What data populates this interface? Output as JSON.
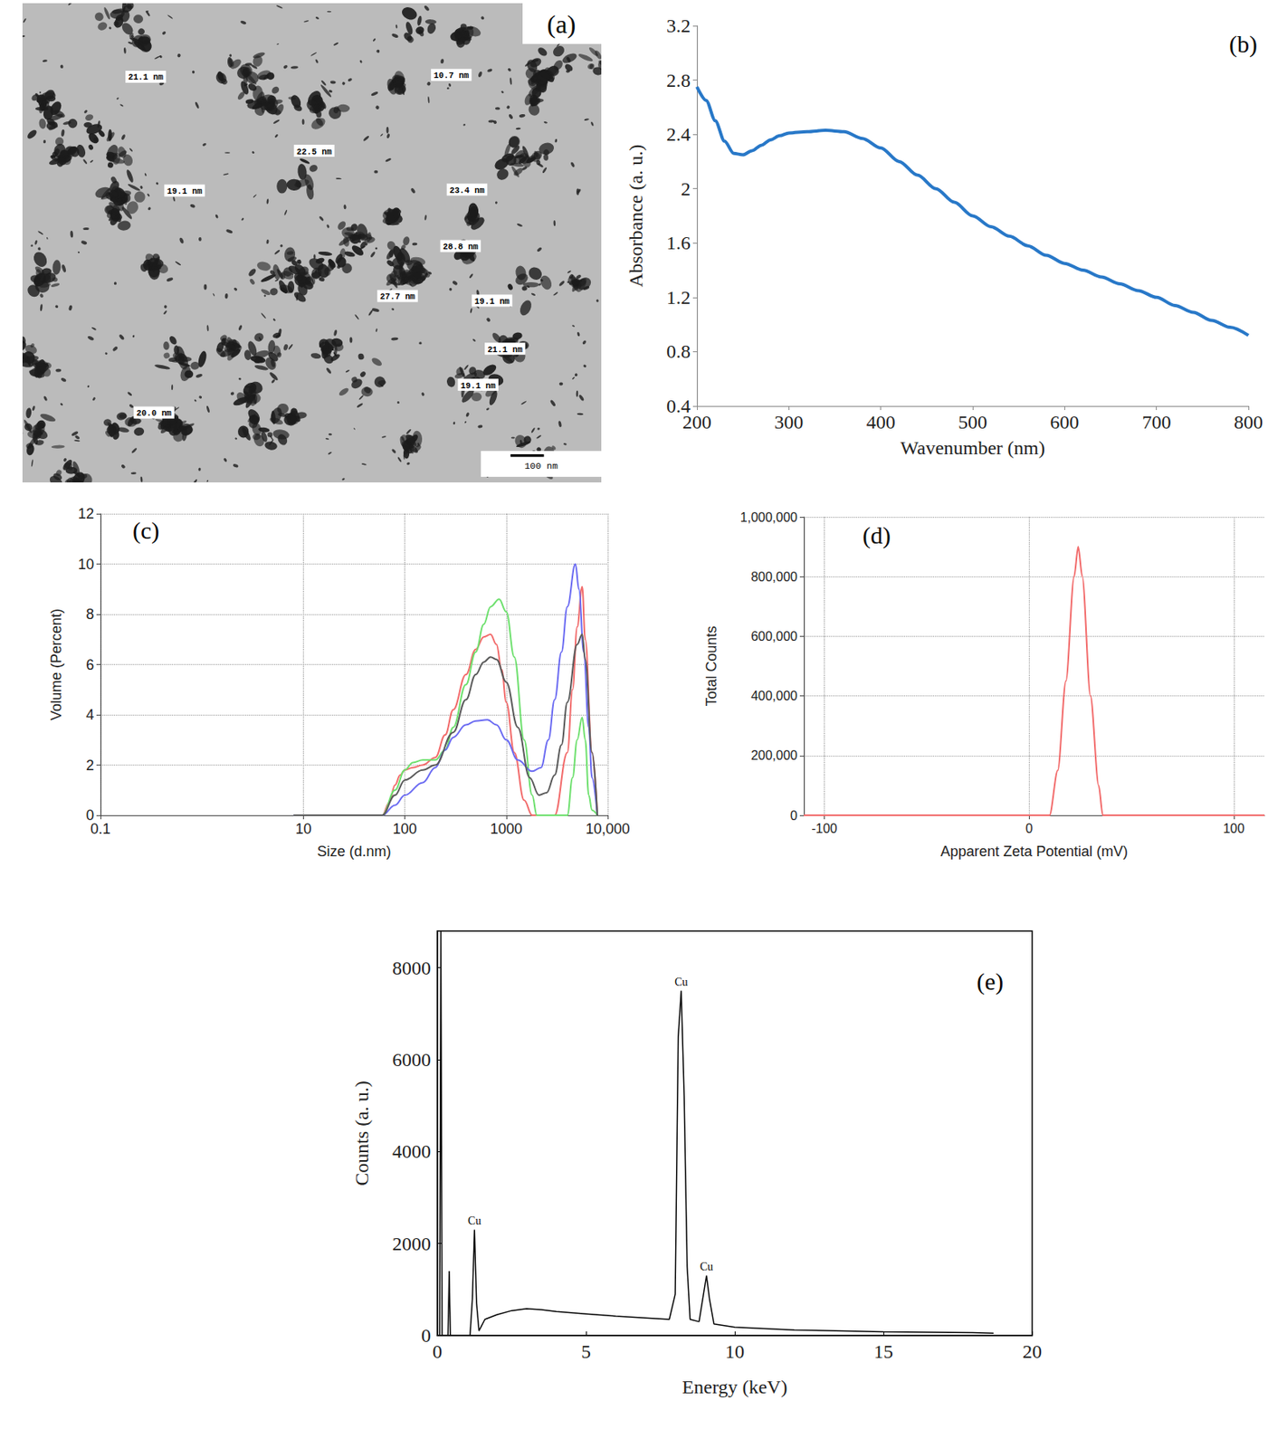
{
  "micrograph": {
    "title": "(a)",
    "labels": [
      "21.1 nm",
      "10.7 nm",
      "22.5 nm",
      "19.1 nm",
      "23.4 nm",
      "28.8 nm",
      "27.7 nm",
      "19.1 nm",
      "21.1 nm",
      "19.1 nm",
      "20.0 nm"
    ],
    "scale_bar": "100 nm"
  },
  "chart_data": [
    {
      "type": "line",
      "title": "(b)",
      "xlabel": "Wavenumber (nm)",
      "ylabel": "Absorbance (a. u.)",
      "x": [
        200,
        210,
        220,
        230,
        240,
        250,
        260,
        270,
        280,
        290,
        300,
        320,
        340,
        360,
        380,
        400,
        420,
        440,
        460,
        480,
        500,
        520,
        540,
        560,
        580,
        600,
        620,
        640,
        660,
        680,
        700,
        720,
        740,
        760,
        780,
        800
      ],
      "values": [
        2.75,
        2.65,
        2.5,
        2.35,
        2.26,
        2.25,
        2.28,
        2.32,
        2.36,
        2.39,
        2.41,
        2.42,
        2.43,
        2.42,
        2.37,
        2.3,
        2.2,
        2.1,
        2.0,
        1.9,
        1.8,
        1.72,
        1.65,
        1.58,
        1.51,
        1.45,
        1.4,
        1.35,
        1.3,
        1.25,
        1.2,
        1.14,
        1.09,
        1.03,
        0.98,
        0.92
      ],
      "color": "#2878c8",
      "marker": "none",
      "xlim": [
        200,
        800
      ],
      "xticks": [
        200,
        300,
        400,
        500,
        600,
        700,
        800
      ],
      "ylim": [
        0.4,
        3.2
      ],
      "yticks": [
        0.4,
        0.8,
        1.2,
        1.6,
        2,
        2.4,
        2.8,
        3.2
      ],
      "grid": false
    },
    {
      "type": "line",
      "title": "(c)",
      "xlabel": "Size (d.nm)",
      "ylabel": "Volume (Percent)",
      "log": "x",
      "series": [
        {
          "color": "#f26b6b",
          "x": [
            8,
            60,
            70,
            80,
            90,
            100,
            120,
            150,
            200,
            250,
            300,
            400,
            500,
            600,
            700,
            800,
            900,
            1000,
            1200,
            1500,
            1800,
            3000,
            4000,
            4500,
            5000,
            5600,
            6000,
            7000,
            7900
          ],
          "values": [
            0,
            0,
            0.5,
            1.2,
            1.6,
            1.8,
            1.9,
            2.0,
            2.3,
            3.2,
            4.2,
            5.6,
            6.6,
            7.1,
            7.2,
            6.8,
            5.8,
            4.5,
            2.5,
            0.6,
            0,
            0,
            2.5,
            5,
            7.5,
            9.1,
            7,
            2.5,
            0
          ]
        },
        {
          "color": "#6ee06e",
          "x": [
            8,
            60,
            80,
            100,
            120,
            150,
            200,
            250,
            300,
            400,
            500,
            600,
            700,
            850,
            1000,
            1200,
            1500,
            1800,
            2000,
            4000,
            4500,
            5000,
            5600,
            6000,
            6500,
            7000,
            7900
          ],
          "values": [
            0,
            0,
            1,
            1.8,
            2.1,
            2.2,
            2.2,
            2.6,
            3.5,
            5.2,
            6.5,
            7.6,
            8.3,
            8.6,
            8.1,
            6.3,
            3,
            0.8,
            0,
            0,
            1.5,
            3,
            3.9,
            3,
            0.8,
            0.2,
            0
          ]
        },
        {
          "color": "#6b6bf2",
          "x": [
            8,
            60,
            80,
            100,
            150,
            200,
            250,
            300,
            400,
            500,
            650,
            800,
            1000,
            1300,
            1800,
            2200,
            2600,
            3000,
            3500,
            4000,
            4800,
            5200,
            5800,
            6500,
            7000,
            7900
          ],
          "values": [
            0,
            0,
            0.4,
            0.8,
            1.3,
            1.9,
            2.6,
            3.1,
            3.6,
            3.75,
            3.8,
            3.6,
            3.0,
            2.2,
            1.75,
            1.9,
            3.0,
            4.6,
            6.5,
            8.3,
            10.0,
            9.0,
            6.5,
            3.5,
            1.5,
            0
          ]
        },
        {
          "color": "#5a5a5a",
          "x": [
            8,
            60,
            80,
            100,
            150,
            200,
            300,
            400,
            500,
            600,
            700,
            800,
            1000,
            1300,
            1700,
            2100,
            2500,
            3000,
            3500,
            4000,
            5000,
            5600,
            6000,
            7000,
            7900
          ],
          "values": [
            0,
            0,
            0.8,
            1.4,
            1.8,
            2.0,
            3.3,
            4.6,
            5.6,
            6.1,
            6.3,
            6.2,
            5.3,
            3.5,
            1.5,
            0.8,
            0.9,
            1.6,
            2.8,
            4.5,
            6.8,
            7.2,
            6.2,
            2.5,
            0
          ]
        }
      ],
      "marker": "none",
      "xlim": [
        0.1,
        10000
      ],
      "xticks": [
        0.1,
        10,
        100,
        1000,
        {
          "value": 10000,
          "label": "10,000"
        }
      ],
      "ylim": [
        0,
        12
      ],
      "yticks": [
        0,
        2,
        4,
        6,
        8,
        10,
        12
      ],
      "grid": true
    },
    {
      "type": "line",
      "title": "(d)",
      "xlabel": "Apparent Zeta Potential (mV)",
      "ylabel": "Total Counts",
      "x": [
        -110,
        10,
        14,
        18,
        22,
        24,
        26,
        30,
        34,
        36,
        115
      ],
      "values": [
        0,
        0,
        150000,
        450000,
        800000,
        900000,
        800000,
        400000,
        100000,
        0,
        0
      ],
      "color": "#f26b6b",
      "marker": "none",
      "xlim": [
        -110,
        115
      ],
      "xticks": [
        -100,
        0,
        100
      ],
      "ylim": [
        0,
        1000000
      ],
      "yticks": [
        0,
        {
          "value": 200000,
          "label": "200,000"
        },
        {
          "value": 400000,
          "label": "400,000"
        },
        {
          "value": 600000,
          "label": "600,000"
        },
        {
          "value": 800000,
          "label": "800,000"
        },
        {
          "value": 1000000,
          "label": "1,000,000"
        }
      ],
      "grid": true
    },
    {
      "type": "line",
      "title": "(e)",
      "xlabel": "Energy (keV)",
      "ylabel": "Counts (a. u.)",
      "x": [
        0,
        0.08,
        0.12,
        0.16,
        0.3,
        0.36,
        0.4,
        0.44,
        1.1,
        1.18,
        1.25,
        1.32,
        1.4,
        1.6,
        2,
        2.5,
        3,
        3.5,
        4,
        5,
        6,
        7,
        7.8,
        8.0,
        8.1,
        8.2,
        8.3,
        8.4,
        8.5,
        8.8,
        8.95,
        9.05,
        9.15,
        9.3,
        10,
        12,
        15,
        18,
        18.7
      ],
      "values": [
        0,
        0,
        8800,
        0,
        0,
        0,
        1400,
        0,
        0,
        800,
        2300,
        700,
        100,
        350,
        450,
        540,
        580,
        560,
        520,
        470,
        420,
        380,
        350,
        900,
        6500,
        7500,
        5200,
        1500,
        350,
        300,
        900,
        1300,
        800,
        250,
        180,
        120,
        80,
        60,
        50
      ],
      "color": "#000000",
      "marker": "none",
      "annotations": [
        {
          "text": "Cu",
          "x": 1.25,
          "y": 2300
        },
        {
          "text": "Cu",
          "x": 8.2,
          "y": 7500
        },
        {
          "text": "Cu",
          "x": 9.05,
          "y": 1300
        }
      ],
      "xlim": [
        0,
        20
      ],
      "xticks": [
        0,
        5,
        10,
        15,
        20
      ],
      "ylim": [
        0,
        8800
      ],
      "yticks": [
        0,
        2000,
        4000,
        6000,
        8000
      ],
      "grid": false
    }
  ]
}
